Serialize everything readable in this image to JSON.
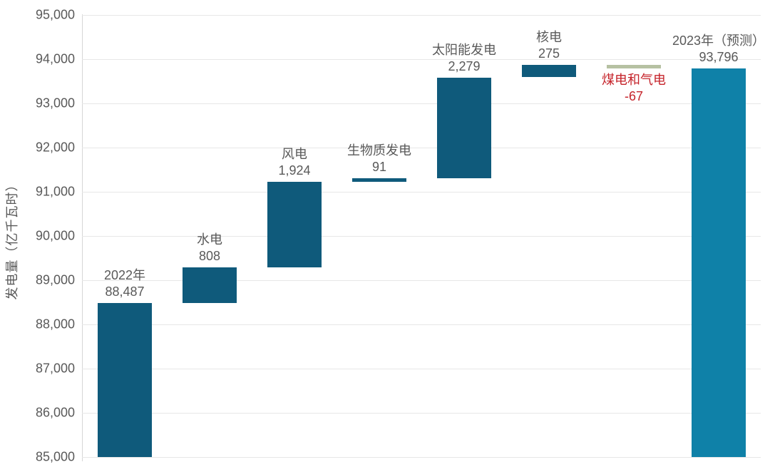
{
  "chart_data": {
    "type": "waterfall",
    "title": "",
    "ylabel": "发电量（亿千瓦时）",
    "xlabel": "",
    "ylim": [
      85000,
      95000
    ],
    "ytick_interval": 1000,
    "ytick_labels": [
      "85,000",
      "86,000",
      "87,000",
      "88,000",
      "89,000",
      "90,000",
      "91,000",
      "92,000",
      "93,000",
      "94,000",
      "95,000"
    ],
    "grid": "horizontal",
    "legend": "none",
    "bars": [
      {
        "name": "2022年",
        "display_value": "88,487",
        "value": 88487,
        "start": 85000,
        "end": 88487,
        "role": "total-start",
        "color_key": "teal",
        "label_color_key": "gray",
        "label_position": "above"
      },
      {
        "name": "水电",
        "display_value": "808",
        "value": 808,
        "start": 88487,
        "end": 89295,
        "role": "increase",
        "color_key": "teal",
        "label_color_key": "gray",
        "label_position": "above"
      },
      {
        "name": "风电",
        "display_value": "1,924",
        "value": 1924,
        "start": 89295,
        "end": 91219,
        "role": "increase",
        "color_key": "teal",
        "label_color_key": "gray",
        "label_position": "above"
      },
      {
        "name": "生物质发电",
        "display_value": "91",
        "value": 91,
        "start": 91219,
        "end": 91310,
        "role": "increase",
        "color_key": "teal",
        "label_color_key": "gray",
        "label_position": "above"
      },
      {
        "name": "太阳能发电",
        "display_value": "2,279",
        "value": 2279,
        "start": 91310,
        "end": 93589,
        "role": "increase",
        "color_key": "teal",
        "label_color_key": "gray",
        "label_position": "above"
      },
      {
        "name": "核电",
        "display_value": "275",
        "value": 275,
        "start": 93589,
        "end": 93864,
        "role": "increase",
        "color_key": "teal",
        "label_color_key": "gray",
        "label_position": "above"
      },
      {
        "name": "煤电和气电",
        "display_value": "-67",
        "value": -67,
        "start": 93864,
        "end": 93797,
        "role": "decrease",
        "color_key": "green",
        "label_color_key": "red",
        "label_position": "below"
      },
      {
        "name": "2023年（预测）",
        "display_value": "93,796",
        "value": 93796,
        "start": 85000,
        "end": 93796,
        "role": "total-forecast",
        "color_key": "blue",
        "label_color_key": "gray",
        "label_position": "above"
      }
    ],
    "colors": {
      "teal": "#0f5a7b",
      "blue": "#0f81a8",
      "green": "#b6c1a2",
      "gray": "#595959",
      "red": "#c5232a",
      "grid": "#e7e7e7",
      "axis": "#d6d6d6"
    }
  }
}
